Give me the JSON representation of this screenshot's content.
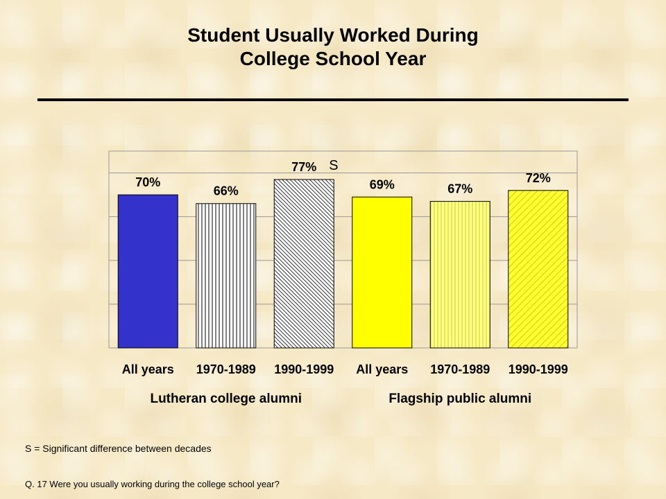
{
  "header": {
    "title_line1": "Student Usually Worked During",
    "title_line2": "College School Year"
  },
  "chart_data": {
    "type": "bar",
    "categories": [
      "All years",
      "1970-1989",
      "1990-1999",
      "All years",
      "1970-1989",
      "1990-1999"
    ],
    "groups": [
      {
        "label": "Lutheran college alumni",
        "categories": [
          0,
          1,
          2
        ]
      },
      {
        "label": "Flagship public alumni",
        "categories": [
          3,
          4,
          5
        ]
      }
    ],
    "values": [
      70,
      66,
      77,
      69,
      67,
      72
    ],
    "value_labels": [
      "70%",
      "66%",
      "77%",
      "69%",
      "67%",
      "72%"
    ],
    "annotations": [
      {
        "category_index": 2,
        "text": "S"
      }
    ],
    "bar_styles": [
      {
        "fill": "#3333cc",
        "pattern": "solid"
      },
      {
        "fill": "#ffffff",
        "pattern": "vertical-lines",
        "stroke": "#000000"
      },
      {
        "fill": "#ffffff",
        "pattern": "diagonal-dense",
        "stroke": "#000000"
      },
      {
        "fill": "#ffff00",
        "pattern": "solid"
      },
      {
        "fill": "#ffff66",
        "pattern": "vertical-lines",
        "stroke": "#cccc00"
      },
      {
        "fill": "#ffff33",
        "pattern": "diagonal",
        "stroke": "#cccc00"
      }
    ],
    "ylim": [
      0,
      90
    ],
    "grid": true,
    "grid_step": 20
  },
  "notes": {
    "significance": "S = Significant difference between decades",
    "question": "Q. 17  Were you usually working during the college school year?"
  }
}
